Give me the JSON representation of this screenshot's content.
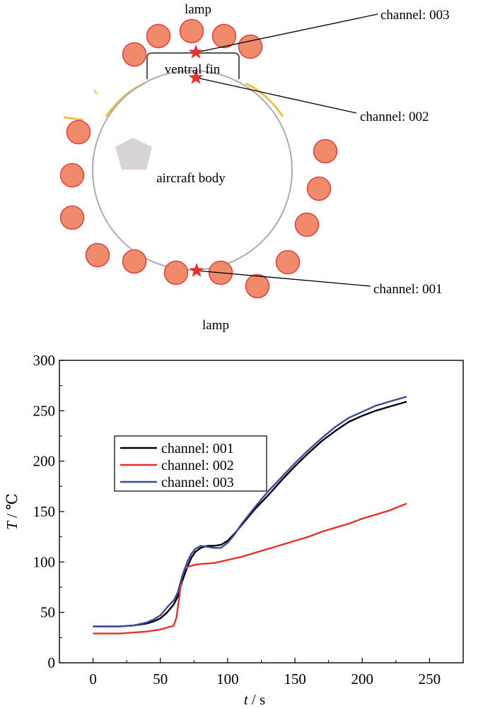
{
  "diagram": {
    "lamp_top_label": "lamp",
    "lamp_bottom_label": "lamp",
    "ventral_fin_label": "ventral fin",
    "aircraft_body_label": "aircraft body",
    "callouts": [
      "channel: 003",
      "channel: 002",
      "channel: 001"
    ],
    "colors": {
      "lamp_fill": "#f08a6a",
      "lamp_stroke": "#e04040",
      "star": "#e8302a",
      "body_stroke": "#b0a8b8",
      "pentagon": "#d8d4d4",
      "insulation": "#f0c040"
    }
  },
  "chart_data": {
    "type": "line",
    "xlabel_var": "t",
    "xlabel_unit": " / s",
    "ylabel_var": "T",
    "ylabel_unit": " / ℃",
    "xlim": [
      -25,
      275
    ],
    "ylim": [
      0,
      300
    ],
    "xticks": [
      0,
      50,
      100,
      150,
      200,
      250
    ],
    "yticks": [
      0,
      50,
      100,
      150,
      200,
      250,
      300
    ],
    "legend_position": "middle-left",
    "series": [
      {
        "name": "channel: 001",
        "color": "#000000",
        "x": [
          0,
          20,
          30,
          40,
          45,
          50,
          55,
          60,
          63,
          66,
          70,
          73,
          76,
          80,
          85,
          90,
          95,
          100,
          105,
          110,
          120,
          130,
          140,
          150,
          160,
          170,
          180,
          190,
          200,
          210,
          220,
          233
        ],
        "y": [
          36,
          36,
          37,
          39,
          41,
          44,
          50,
          58,
          66,
          80,
          95,
          104,
          110,
          114,
          116,
          116,
          117,
          121,
          128,
          136,
          152,
          166,
          181,
          195,
          208,
          220,
          230,
          239,
          245,
          250,
          254,
          259
        ]
      },
      {
        "name": "channel: 002",
        "color": "#e8302a",
        "x": [
          0,
          20,
          30,
          40,
          50,
          55,
          58,
          60,
          62,
          64,
          66,
          68,
          70,
          75,
          80,
          90,
          100,
          110,
          120,
          130,
          140,
          150,
          160,
          170,
          180,
          190,
          200,
          210,
          220,
          233
        ],
        "y": [
          29,
          29,
          30,
          31,
          33,
          35,
          36,
          37,
          45,
          65,
          85,
          93,
          95,
          97,
          98,
          99,
          102,
          105,
          109,
          113,
          117,
          121,
          125,
          130,
          134,
          138,
          143,
          147,
          151,
          158
        ]
      },
      {
        "name": "channel: 003",
        "color": "#3a4aa0",
        "x": [
          0,
          20,
          30,
          40,
          45,
          50,
          55,
          60,
          63,
          66,
          70,
          73,
          76,
          80,
          85,
          90,
          95,
          100,
          105,
          110,
          120,
          130,
          140,
          150,
          160,
          170,
          180,
          190,
          200,
          210,
          220,
          233
        ],
        "y": [
          36,
          36,
          37,
          40,
          43,
          47,
          55,
          62,
          70,
          85,
          100,
          108,
          113,
          116,
          115,
          114,
          114,
          119,
          127,
          137,
          154,
          170,
          184,
          198,
          211,
          223,
          234,
          243,
          249,
          255,
          259,
          264
        ]
      }
    ]
  }
}
